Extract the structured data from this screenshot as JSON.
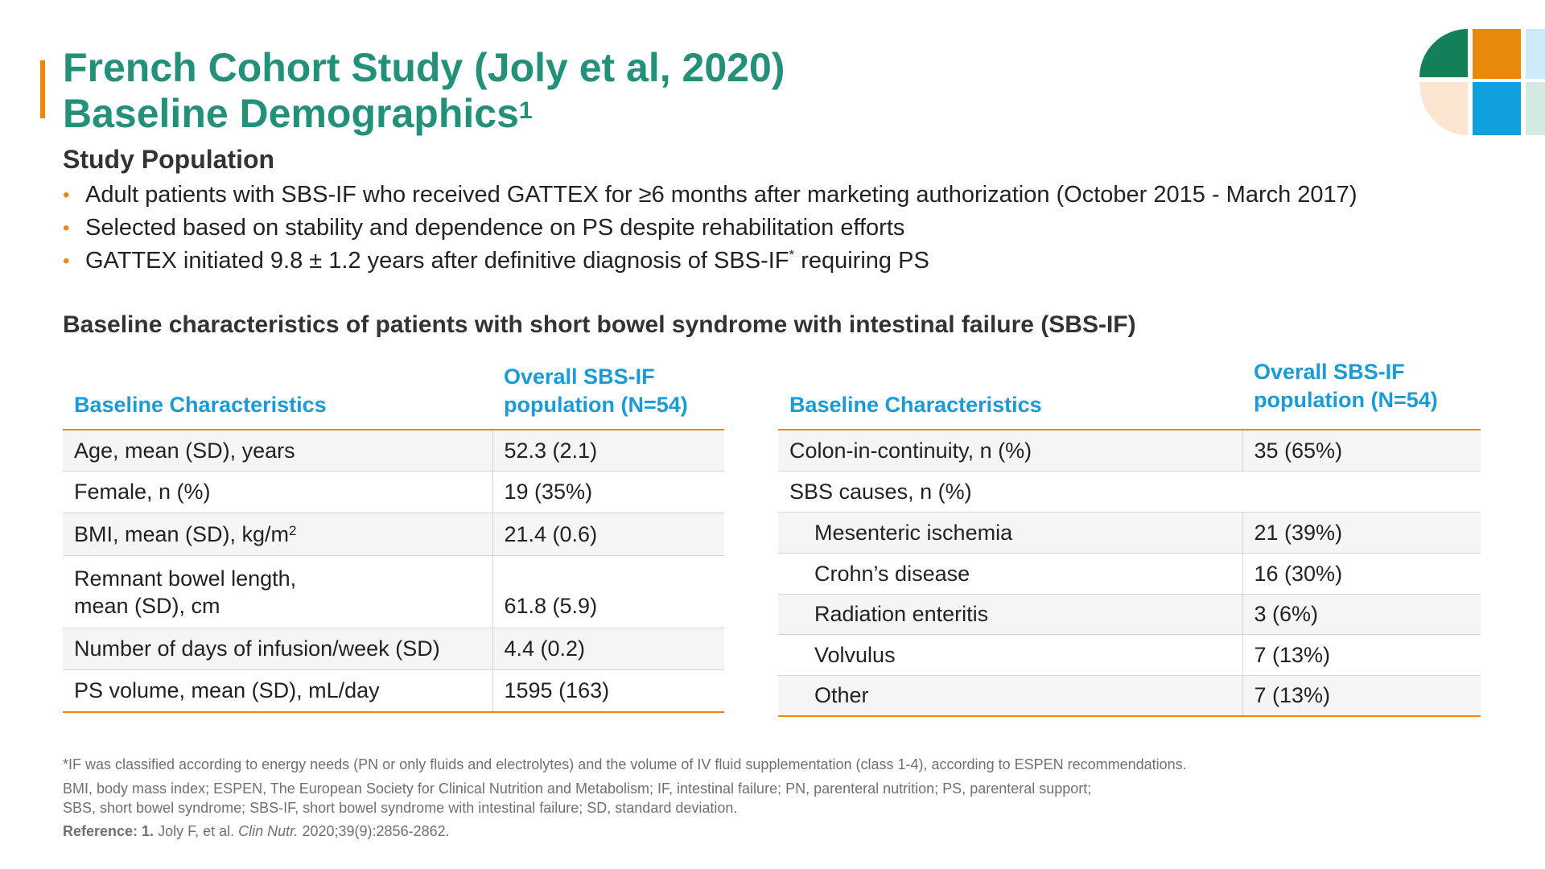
{
  "title": {
    "line1": "French Cohort Study (Joly et al, 2020)",
    "line2": "Baseline Demographics",
    "line2_sup": "1"
  },
  "study_population": {
    "heading": "Study Population",
    "bullets": [
      "Adult patients with SBS-IF who received GATTEX for ≥6 months after marketing authorization (October 2015 - March 2017)",
      "Selected based on stability and dependence on PS despite rehabilitation efforts",
      "GATTEX initiated 9.8 ± 1.2 years after definitive diagnosis of SBS-IF"
    ],
    "bullet3_sup": "*",
    "bullet3_tail": " requiring PS"
  },
  "table_title": "Baseline characteristics of patients with short bowel syndrome with intestinal failure (SBS-IF)",
  "left_table": {
    "headers": [
      "Baseline Characteristics",
      "Overall SBS-IF",
      "population (N=54)"
    ],
    "rows": [
      {
        "label": "Age, mean (SD), years",
        "value": "52.3 (2.1)"
      },
      {
        "label": "Female, n (%)",
        "value": "19 (35%)"
      },
      {
        "label": "BMI, mean (SD), kg/m",
        "label_sup": "2",
        "value": "21.4 (0.6)"
      },
      {
        "label_line1": "Remnant bowel length,",
        "label_line2": "mean (SD), cm",
        "value": "61.8 (5.9)"
      },
      {
        "label": "Number of days of infusion/week (SD)",
        "value": "4.4 (0.2)"
      },
      {
        "label": "PS volume, mean (SD), mL/day",
        "value": "1595 (163)"
      }
    ]
  },
  "right_table": {
    "headers": [
      "Baseline Characteristics",
      "Overall SBS-IF",
      "population (N=54)"
    ],
    "rows": [
      {
        "label": "Colon-in-continuity, n (%)",
        "value": "35 (65%)"
      },
      {
        "label": "SBS causes, n (%)",
        "value": ""
      },
      {
        "label": "Mesenteric ischemia",
        "value": "21 (39%)"
      },
      {
        "label": "Crohn’s disease",
        "value": "16 (30%)"
      },
      {
        "label": "Radiation enteritis",
        "value": "3 (6%)"
      },
      {
        "label": "Volvulus",
        "value": "7 (13%)"
      },
      {
        "label": "Other",
        "value": "7 (13%)"
      }
    ]
  },
  "footnotes": {
    "line1": "*IF was classified according to energy needs (PN or only fluids and electrolytes) and the volume of IV fluid supplementation (class 1-4), according to ESPEN recommendations.",
    "line2": "BMI, body mass index; ESPEN, The European Society for Clinical Nutrition and Metabolism; IF, intestinal failure; PN, parenteral nutrition; PS, parenteral support;",
    "line3": "SBS, short bowel syndrome; SBS-IF, short bowel syndrome with intestinal failure; SD, standard deviation.",
    "reference_label": "Reference: 1.",
    "reference_authors": " Joly F, et al. ",
    "reference_journal": "Clin Nutr.",
    "reference_rest": " 2020;39(9):2856-2862."
  },
  "colors": {
    "title_green": "#23907A",
    "accent_orange": "#E8890C",
    "header_blue": "#1A9BD7",
    "logo_dark_green": "#13805A",
    "logo_orange": "#E8890C",
    "logo_peach": "#FCE6D2",
    "logo_blue": "#0E9FDD",
    "logo_light_blue": "#CDEBFA",
    "logo_mint": "#D2EAE2"
  },
  "icons": {
    "logo": "brand-quadrant-logo"
  }
}
